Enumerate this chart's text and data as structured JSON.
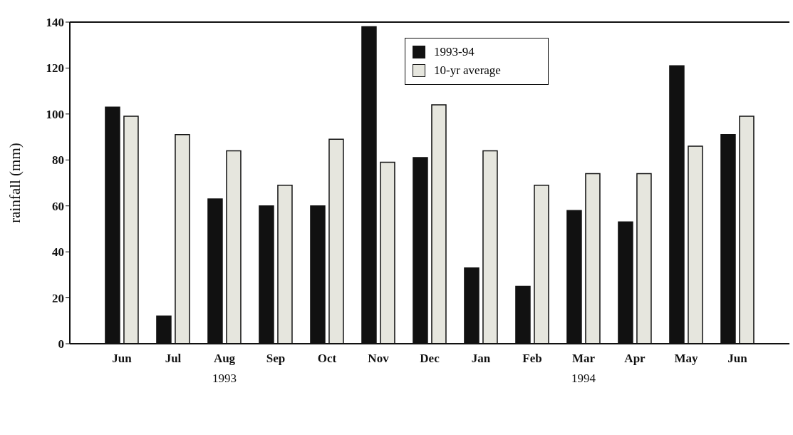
{
  "chart_data": {
    "type": "bar",
    "ylabel": "rainfall (mm)",
    "categories": [
      "Jun",
      "Jul",
      "Aug",
      "Sep",
      "Oct",
      "Nov",
      "Dec",
      "Jan",
      "Feb",
      "Mar",
      "Apr",
      "May",
      "Jun"
    ],
    "series": [
      {
        "name": "1993-94",
        "color": "#111111",
        "values": [
          103,
          12,
          63,
          60,
          60,
          138,
          81,
          33,
          25,
          58,
          53,
          121,
          91
        ]
      },
      {
        "name": "10-yr average",
        "color": "#e6e6de",
        "values": [
          99,
          91,
          84,
          69,
          89,
          79,
          104,
          84,
          69,
          74,
          74,
          86,
          99
        ]
      }
    ],
    "ylim": [
      0,
      140
    ],
    "yticks": [
      0,
      20,
      40,
      60,
      80,
      100,
      120,
      140
    ],
    "grid": false,
    "legend": "top",
    "annotations": [
      "1993",
      "1994"
    ]
  }
}
